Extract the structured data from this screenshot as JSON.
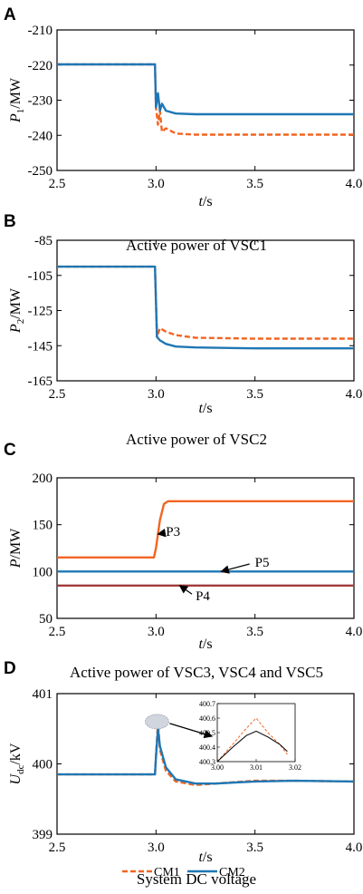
{
  "colors": {
    "cm1": "#f26522",
    "cm2": "#1f77b4",
    "p4": "#a23b3b",
    "axis": "#000000"
  },
  "legend": {
    "cm1": "CM1",
    "cm2": "CM2"
  },
  "chart_data": [
    {
      "id": "A",
      "letter": "A",
      "type": "line",
      "caption": "Active power of VSC1",
      "ylabel_main": "P",
      "ylabel_sub": "1",
      "ylabel_unit": "/MW",
      "xlabel_main": "t",
      "xlabel_unit": "/s",
      "xlim": [
        2.5,
        4.0
      ],
      "ylim": [
        -250,
        -210
      ],
      "xticks": [
        2.5,
        3.0,
        3.5,
        4.0
      ],
      "yticks": [
        -210,
        -220,
        -230,
        -240,
        -250
      ],
      "xtick_labels": [
        "2.5",
        "3.0",
        "3.5",
        "4.0"
      ],
      "ytick_labels": [
        "-210",
        "-220",
        "-230",
        "-240",
        "-250"
      ],
      "series": [
        {
          "key": "cm1",
          "name": "CM1",
          "style": "dashed",
          "x": [
            2.5,
            2.995,
            3.0,
            3.01,
            3.02,
            3.03,
            3.05,
            3.1,
            3.2,
            3.5,
            4.0
          ],
          "y": [
            -219.8,
            -219.8,
            -232,
            -237,
            -233,
            -239,
            -238,
            -239.5,
            -239.8,
            -239.8,
            -239.8
          ]
        },
        {
          "key": "cm2",
          "name": "CM2",
          "style": "solid",
          "x": [
            2.5,
            2.995,
            3.0,
            3.01,
            3.02,
            3.03,
            3.05,
            3.1,
            3.2,
            3.5,
            4.0
          ],
          "y": [
            -219.8,
            -219.8,
            -232,
            -228,
            -233,
            -231,
            -233,
            -233.8,
            -234,
            -234,
            -234
          ]
        }
      ]
    },
    {
      "id": "B",
      "letter": "B",
      "type": "line",
      "caption": "Active power of VSC2",
      "ylabel_main": "P",
      "ylabel_sub": "2",
      "ylabel_unit": "/MW",
      "xlabel_main": "t",
      "xlabel_unit": "/s",
      "xlim": [
        2.5,
        4.0
      ],
      "ylim": [
        -165,
        -85
      ],
      "xticks": [
        2.5,
        3.0,
        3.5,
        4.0
      ],
      "yticks": [
        -85,
        -105,
        -125,
        -145,
        -165
      ],
      "xtick_labels": [
        "2.5",
        "3.0",
        "3.5",
        "4.0"
      ],
      "ytick_labels": [
        "-85",
        "-105",
        "-125",
        "-145",
        "-165"
      ],
      "series": [
        {
          "key": "cm1",
          "name": "CM1",
          "style": "dashed",
          "x": [
            2.5,
            2.995,
            3.005,
            3.02,
            3.05,
            3.1,
            3.2,
            3.5,
            4.0
          ],
          "y": [
            -100,
            -100,
            -140,
            -135,
            -137,
            -139,
            -140.5,
            -141,
            -141
          ]
        },
        {
          "key": "cm2",
          "name": "CM2",
          "style": "solid",
          "x": [
            2.5,
            2.995,
            3.005,
            3.02,
            3.05,
            3.1,
            3.2,
            3.5,
            4.0
          ],
          "y": [
            -100,
            -100,
            -140,
            -142,
            -144,
            -145.5,
            -146,
            -146.5,
            -146.5
          ]
        }
      ]
    },
    {
      "id": "C",
      "letter": "C",
      "type": "line",
      "caption": "Active power of VSC3, VSC4 and VSC5",
      "ylabel_main": "P",
      "ylabel_sub": "",
      "ylabel_unit": "/MW",
      "xlabel_main": "t",
      "xlabel_unit": "/s",
      "xlim": [
        2.5,
        4.0
      ],
      "ylim": [
        50,
        200
      ],
      "xticks": [
        2.5,
        3.0,
        3.5,
        4.0
      ],
      "yticks": [
        200,
        150,
        100,
        50
      ],
      "xtick_labels": [
        "2.5",
        "3.0",
        "3.5",
        "4.0"
      ],
      "ytick_labels": [
        "200",
        "150",
        "100",
        "50"
      ],
      "annotations": [
        {
          "text": "P3",
          "x": 3.05,
          "y": 143
        },
        {
          "text": "P5",
          "x": 3.5,
          "y": 110
        },
        {
          "text": "P4",
          "x": 3.2,
          "y": 74
        }
      ],
      "series": [
        {
          "key": "cm1",
          "name": "P3",
          "style": "solid",
          "x": [
            2.5,
            2.99,
            3.0,
            3.02,
            3.04,
            3.06,
            3.1,
            4.0
          ],
          "y": [
            115,
            115,
            125,
            155,
            172,
            175,
            175,
            175
          ]
        },
        {
          "key": "cm2",
          "name": "P5",
          "style": "solid",
          "x": [
            2.5,
            4.0
          ],
          "y": [
            100,
            100
          ]
        },
        {
          "key": "p4",
          "name": "P4",
          "style": "solid",
          "x": [
            2.5,
            4.0
          ],
          "y": [
            85,
            85
          ]
        }
      ]
    },
    {
      "id": "D",
      "letter": "D",
      "type": "line",
      "caption": "System DC voltage",
      "ylabel_main": "U",
      "ylabel_sub": "dc",
      "ylabel_unit": "/kV",
      "xlabel_main": "t",
      "xlabel_unit": "/s",
      "xlim": [
        2.5,
        4.0
      ],
      "ylim": [
        399,
        401
      ],
      "xticks": [
        2.5,
        3.0,
        3.5,
        4.0
      ],
      "yticks": [
        401,
        400,
        399
      ],
      "xtick_labels": [
        "2.5",
        "3.0",
        "3.5",
        "4.0"
      ],
      "ytick_labels": [
        "401",
        "400",
        "399"
      ],
      "series": [
        {
          "key": "cm1",
          "name": "CM1",
          "style": "dashed",
          "x": [
            2.5,
            2.995,
            3.0,
            3.01,
            3.02,
            3.05,
            3.1,
            3.2,
            3.3,
            3.5,
            3.7,
            4.0
          ],
          "y": [
            399.85,
            399.85,
            400.1,
            400.6,
            400.2,
            399.9,
            399.75,
            399.7,
            399.72,
            399.76,
            399.76,
            399.75
          ]
        },
        {
          "key": "cm2",
          "name": "CM2",
          "style": "solid",
          "x": [
            2.5,
            2.995,
            3.0,
            3.01,
            3.02,
            3.05,
            3.1,
            3.2,
            3.3,
            3.5,
            3.7,
            4.0
          ],
          "y": [
            399.85,
            399.85,
            400.1,
            400.5,
            400.25,
            399.95,
            399.78,
            399.72,
            399.72,
            399.75,
            399.76,
            399.75
          ]
        }
      ],
      "inset": {
        "xlim": [
          3.0,
          3.02
        ],
        "ylim": [
          400.3,
          400.7
        ],
        "xticks": [
          3.0,
          3.01,
          3.02
        ],
        "yticks": [
          400.7,
          400.6,
          400.5,
          400.4,
          400.3
        ],
        "xtick_labels": [
          "3.00",
          "3.01",
          "3.02"
        ],
        "ytick_labels": [
          "400.7",
          "400.6",
          "400.5",
          "400.4",
          "400.3"
        ],
        "series": [
          {
            "key": "cm1",
            "name": "CM1",
            "style": "dashed",
            "x": [
              3.0,
              3.004,
              3.0075,
              3.01,
              3.013,
              3.016,
              3.018
            ],
            "y": [
              400.3,
              400.42,
              400.53,
              400.6,
              400.5,
              400.42,
              400.35
            ]
          },
          {
            "key": "cm2",
            "name": "CM2",
            "style": "solid",
            "x": [
              3.0,
              3.004,
              3.0075,
              3.01,
              3.013,
              3.016,
              3.018
            ],
            "y": [
              400.3,
              400.4,
              400.48,
              400.51,
              400.47,
              400.42,
              400.37
            ]
          }
        ]
      }
    }
  ]
}
